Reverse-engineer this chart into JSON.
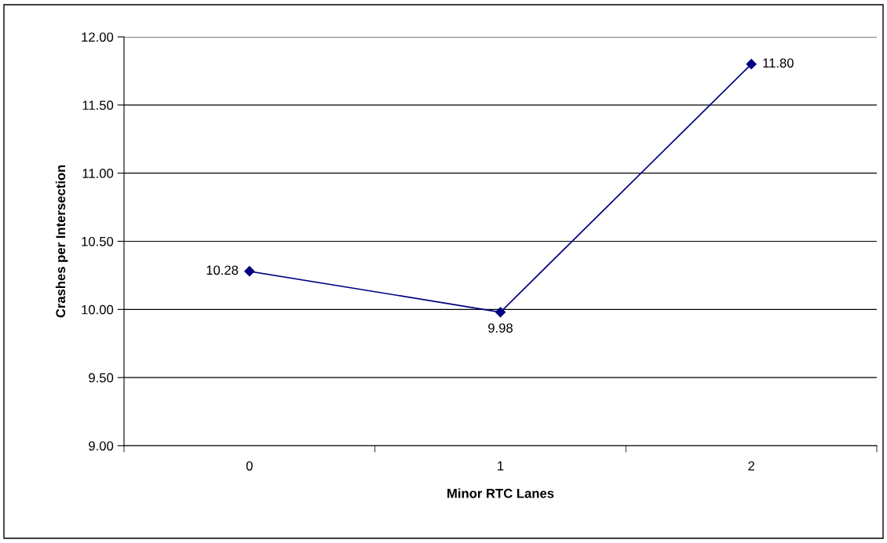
{
  "chart_data": {
    "type": "line",
    "xlabel": "Minor RTC Lanes",
    "ylabel": "Crashes per Intersection",
    "categories": [
      "0",
      "1",
      "2"
    ],
    "series": [
      {
        "color": "#000080",
        "values": [
          10.28,
          9.98,
          11.8
        ],
        "value_labels": [
          "10.28",
          "9.98",
          "11.80"
        ]
      }
    ],
    "ylim": [
      9,
      12
    ],
    "yticks": [
      {
        "value": 9,
        "label": "9.00"
      },
      {
        "value": 9.5,
        "label": "9.50"
      },
      {
        "value": 10,
        "label": "10.00"
      },
      {
        "value": 10.5,
        "label": "10.50"
      },
      {
        "value": 11,
        "label": "11.00"
      },
      {
        "value": 11.5,
        "label": "11.50"
      },
      {
        "value": 12,
        "label": "12.00"
      }
    ],
    "grid": "y",
    "marker": "diamond",
    "line_style": "solid"
  }
}
